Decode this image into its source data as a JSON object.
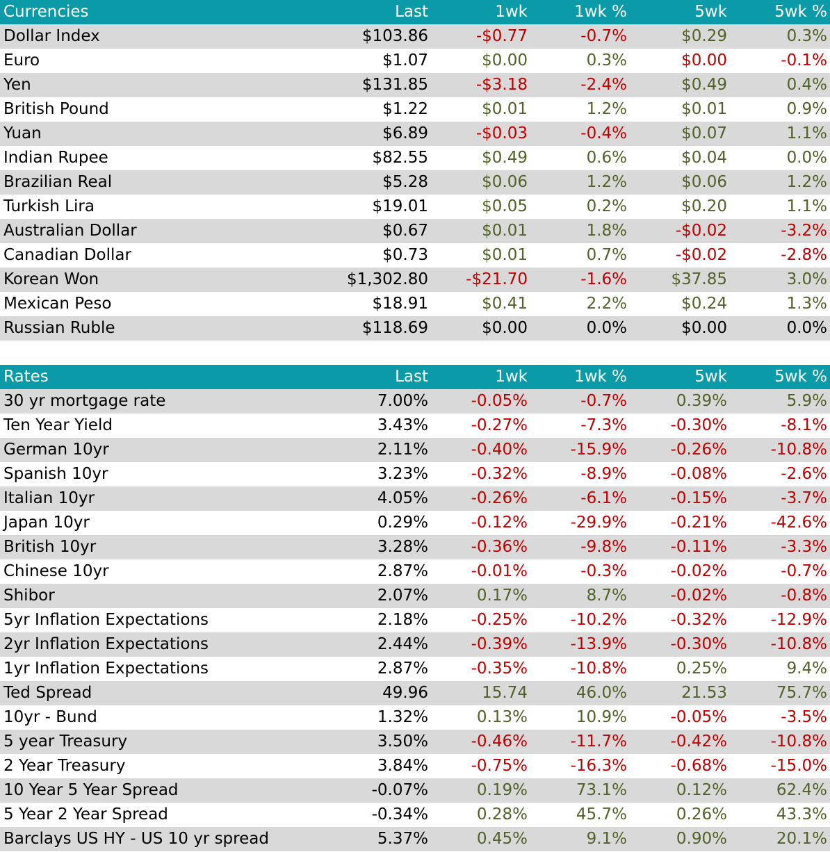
{
  "colors": {
    "header_bg": "#0a9aa8",
    "header_text": "#ffffff",
    "row_shade": "#d9d9d9",
    "positive": "#4f6228",
    "negative": "#c00000",
    "neutral": "#000000"
  },
  "currencies": {
    "header": [
      "Currencies",
      "Last",
      "1wk",
      "1wk %",
      "5wk",
      "5wk %"
    ],
    "rows": [
      {
        "name": "Dollar Index",
        "last": "$103.86",
        "wk1": "-$0.77",
        "wk1_pct": "-0.7%",
        "wk5": "$0.29",
        "wk5_pct": "0.3%",
        "c1": "negative",
        "c1p": "negative",
        "c5": "positive",
        "c5p": "positive"
      },
      {
        "name": "Euro",
        "last": "$1.07",
        "wk1": "$0.00",
        "wk1_pct": "0.3%",
        "wk5": "$0.00",
        "wk5_pct": "-0.1%",
        "c1": "positive",
        "c1p": "positive",
        "c5": "negative",
        "c5p": "negative"
      },
      {
        "name": "Yen",
        "last": "$131.85",
        "wk1": "-$3.18",
        "wk1_pct": "-2.4%",
        "wk5": "$0.49",
        "wk5_pct": "0.4%",
        "c1": "negative",
        "c1p": "negative",
        "c5": "positive",
        "c5p": "positive"
      },
      {
        "name": "British Pound",
        "last": "$1.22",
        "wk1": "$0.01",
        "wk1_pct": "1.2%",
        "wk5": "$0.01",
        "wk5_pct": "0.9%",
        "c1": "positive",
        "c1p": "positive",
        "c5": "positive",
        "c5p": "positive"
      },
      {
        "name": "Yuan",
        "last": "$6.89",
        "wk1": "-$0.03",
        "wk1_pct": "-0.4%",
        "wk5": "$0.07",
        "wk5_pct": "1.1%",
        "c1": "negative",
        "c1p": "negative",
        "c5": "positive",
        "c5p": "positive"
      },
      {
        "name": "Indian Rupee",
        "last": "$82.55",
        "wk1": "$0.49",
        "wk1_pct": "0.6%",
        "wk5": "$0.04",
        "wk5_pct": "0.0%",
        "c1": "positive",
        "c1p": "positive",
        "c5": "positive",
        "c5p": "positive"
      },
      {
        "name": "Brazilian Real",
        "last": "$5.28",
        "wk1": "$0.06",
        "wk1_pct": "1.2%",
        "wk5": "$0.06",
        "wk5_pct": "1.2%",
        "c1": "positive",
        "c1p": "positive",
        "c5": "positive",
        "c5p": "positive"
      },
      {
        "name": "Turkish Lira",
        "last": "$19.01",
        "wk1": "$0.05",
        "wk1_pct": "0.2%",
        "wk5": "$0.20",
        "wk5_pct": "1.1%",
        "c1": "positive",
        "c1p": "positive",
        "c5": "positive",
        "c5p": "positive"
      },
      {
        "name": "Australian Dollar",
        "last": "$0.67",
        "wk1": "$0.01",
        "wk1_pct": "1.8%",
        "wk5": "-$0.02",
        "wk5_pct": "-3.2%",
        "c1": "positive",
        "c1p": "positive",
        "c5": "negative",
        "c5p": "negative"
      },
      {
        "name": "Canadian Dollar",
        "last": "$0.73",
        "wk1": "$0.01",
        "wk1_pct": "0.7%",
        "wk5": "-$0.02",
        "wk5_pct": "-2.8%",
        "c1": "positive",
        "c1p": "positive",
        "c5": "negative",
        "c5p": "negative"
      },
      {
        "name": "Korean Won",
        "last": "$1,302.80",
        "wk1": "-$21.70",
        "wk1_pct": "-1.6%",
        "wk5": "$37.85",
        "wk5_pct": "3.0%",
        "c1": "negative",
        "c1p": "negative",
        "c5": "positive",
        "c5p": "positive"
      },
      {
        "name": "Mexican Peso",
        "last": "$18.91",
        "wk1": "$0.41",
        "wk1_pct": "2.2%",
        "wk5": "$0.24",
        "wk5_pct": "1.3%",
        "c1": "positive",
        "c1p": "positive",
        "c5": "positive",
        "c5p": "positive"
      },
      {
        "name": "Russian Ruble",
        "last": "$118.69",
        "wk1": "$0.00",
        "wk1_pct": "0.0%",
        "wk5": "$0.00",
        "wk5_pct": "0.0%",
        "c1": "neutral",
        "c1p": "neutral",
        "c5": "neutral",
        "c5p": "neutral"
      }
    ]
  },
  "rates": {
    "header": [
      "Rates",
      "Last",
      "1wk",
      "1wk %",
      "5wk",
      "5wk %"
    ],
    "rows": [
      {
        "name": "30 yr mortgage rate",
        "last": "7.00%",
        "wk1": "-0.05%",
        "wk1_pct": "-0.7%",
        "wk5": "0.39%",
        "wk5_pct": "5.9%",
        "c1": "negative",
        "c1p": "negative",
        "c5": "positive",
        "c5p": "positive"
      },
      {
        "name": "Ten Year Yield",
        "last": "3.43%",
        "wk1": "-0.27%",
        "wk1_pct": "-7.3%",
        "wk5": "-0.30%",
        "wk5_pct": "-8.1%",
        "c1": "negative",
        "c1p": "negative",
        "c5": "negative",
        "c5p": "negative"
      },
      {
        "name": "German 10yr",
        "last": "2.11%",
        "wk1": "-0.40%",
        "wk1_pct": "-15.9%",
        "wk5": "-0.26%",
        "wk5_pct": "-10.8%",
        "c1": "negative",
        "c1p": "negative",
        "c5": "negative",
        "c5p": "negative"
      },
      {
        "name": "Spanish 10yr",
        "last": "3.23%",
        "wk1": "-0.32%",
        "wk1_pct": "-8.9%",
        "wk5": "-0.08%",
        "wk5_pct": "-2.6%",
        "c1": "negative",
        "c1p": "negative",
        "c5": "negative",
        "c5p": "negative"
      },
      {
        "name": "Italian 10yr",
        "last": "4.05%",
        "wk1": "-0.26%",
        "wk1_pct": "-6.1%",
        "wk5": "-0.15%",
        "wk5_pct": "-3.7%",
        "c1": "negative",
        "c1p": "negative",
        "c5": "negative",
        "c5p": "negative"
      },
      {
        "name": "Japan 10yr",
        "last": "0.29%",
        "wk1": "-0.12%",
        "wk1_pct": "-29.9%",
        "wk5": "-0.21%",
        "wk5_pct": "-42.6%",
        "c1": "negative",
        "c1p": "negative",
        "c5": "negative",
        "c5p": "negative"
      },
      {
        "name": "British 10yr",
        "last": "3.28%",
        "wk1": "-0.36%",
        "wk1_pct": "-9.8%",
        "wk5": "-0.11%",
        "wk5_pct": "-3.3%",
        "c1": "negative",
        "c1p": "negative",
        "c5": "negative",
        "c5p": "negative"
      },
      {
        "name": "Chinese 10yr",
        "last": "2.87%",
        "wk1": "-0.01%",
        "wk1_pct": "-0.3%",
        "wk5": "-0.02%",
        "wk5_pct": "-0.7%",
        "c1": "negative",
        "c1p": "negative",
        "c5": "negative",
        "c5p": "negative"
      },
      {
        "name": "Shibor",
        "last": "2.07%",
        "wk1": "0.17%",
        "wk1_pct": "8.7%",
        "wk5": "-0.02%",
        "wk5_pct": "-0.8%",
        "c1": "positive",
        "c1p": "positive",
        "c5": "negative",
        "c5p": "negative"
      },
      {
        "name": "5yr Inflation Expectations",
        "last": "2.18%",
        "wk1": "-0.25%",
        "wk1_pct": "-10.2%",
        "wk5": "-0.32%",
        "wk5_pct": "-12.9%",
        "c1": "negative",
        "c1p": "negative",
        "c5": "negative",
        "c5p": "negative"
      },
      {
        "name": "2yr Inflation Expectations",
        "last": "2.44%",
        "wk1": "-0.39%",
        "wk1_pct": "-13.9%",
        "wk5": "-0.30%",
        "wk5_pct": "-10.8%",
        "c1": "negative",
        "c1p": "negative",
        "c5": "negative",
        "c5p": "negative"
      },
      {
        "name": "1yr Inflation Expectations",
        "last": "2.87%",
        "wk1": "-0.35%",
        "wk1_pct": "-10.8%",
        "wk5": "0.25%",
        "wk5_pct": "9.4%",
        "c1": "negative",
        "c1p": "negative",
        "c5": "positive",
        "c5p": "positive"
      },
      {
        "name": "Ted Spread",
        "last": "49.96",
        "wk1": "15.74",
        "wk1_pct": "46.0%",
        "wk5": "21.53",
        "wk5_pct": "75.7%",
        "c1": "positive",
        "c1p": "positive",
        "c5": "positive",
        "c5p": "positive"
      },
      {
        "name": "10yr - Bund",
        "last": "1.32%",
        "wk1": "0.13%",
        "wk1_pct": "10.9%",
        "wk5": "-0.05%",
        "wk5_pct": "-3.5%",
        "c1": "positive",
        "c1p": "positive",
        "c5": "negative",
        "c5p": "negative"
      },
      {
        "name": "5 year Treasury",
        "last": "3.50%",
        "wk1": "-0.46%",
        "wk1_pct": "-11.7%",
        "wk5": "-0.42%",
        "wk5_pct": "-10.8%",
        "c1": "negative",
        "c1p": "negative",
        "c5": "negative",
        "c5p": "negative"
      },
      {
        "name": "2 Year Treasury",
        "last": "3.84%",
        "wk1": "-0.75%",
        "wk1_pct": "-16.3%",
        "wk5": "-0.68%",
        "wk5_pct": "-15.0%",
        "c1": "negative",
        "c1p": "negative",
        "c5": "negative",
        "c5p": "negative"
      },
      {
        "name": "10 Year 5 Year Spread",
        "last": "-0.07%",
        "wk1": "0.19%",
        "wk1_pct": "73.1%",
        "wk5": "0.12%",
        "wk5_pct": "62.4%",
        "c1": "positive",
        "c1p": "positive",
        "c5": "positive",
        "c5p": "positive"
      },
      {
        "name": "5 Year 2 Year Spread",
        "last": "-0.34%",
        "wk1": "0.28%",
        "wk1_pct": "45.7%",
        "wk5": "0.26%",
        "wk5_pct": "43.3%",
        "c1": "positive",
        "c1p": "positive",
        "c5": "positive",
        "c5p": "positive"
      },
      {
        "name": "Barclays US HY - US 10 yr spread",
        "last": "5.37%",
        "wk1": "0.45%",
        "wk1_pct": "9.1%",
        "wk5": "0.90%",
        "wk5_pct": "20.1%",
        "c1": "positive",
        "c1p": "positive",
        "c5": "positive",
        "c5p": "positive"
      }
    ]
  }
}
